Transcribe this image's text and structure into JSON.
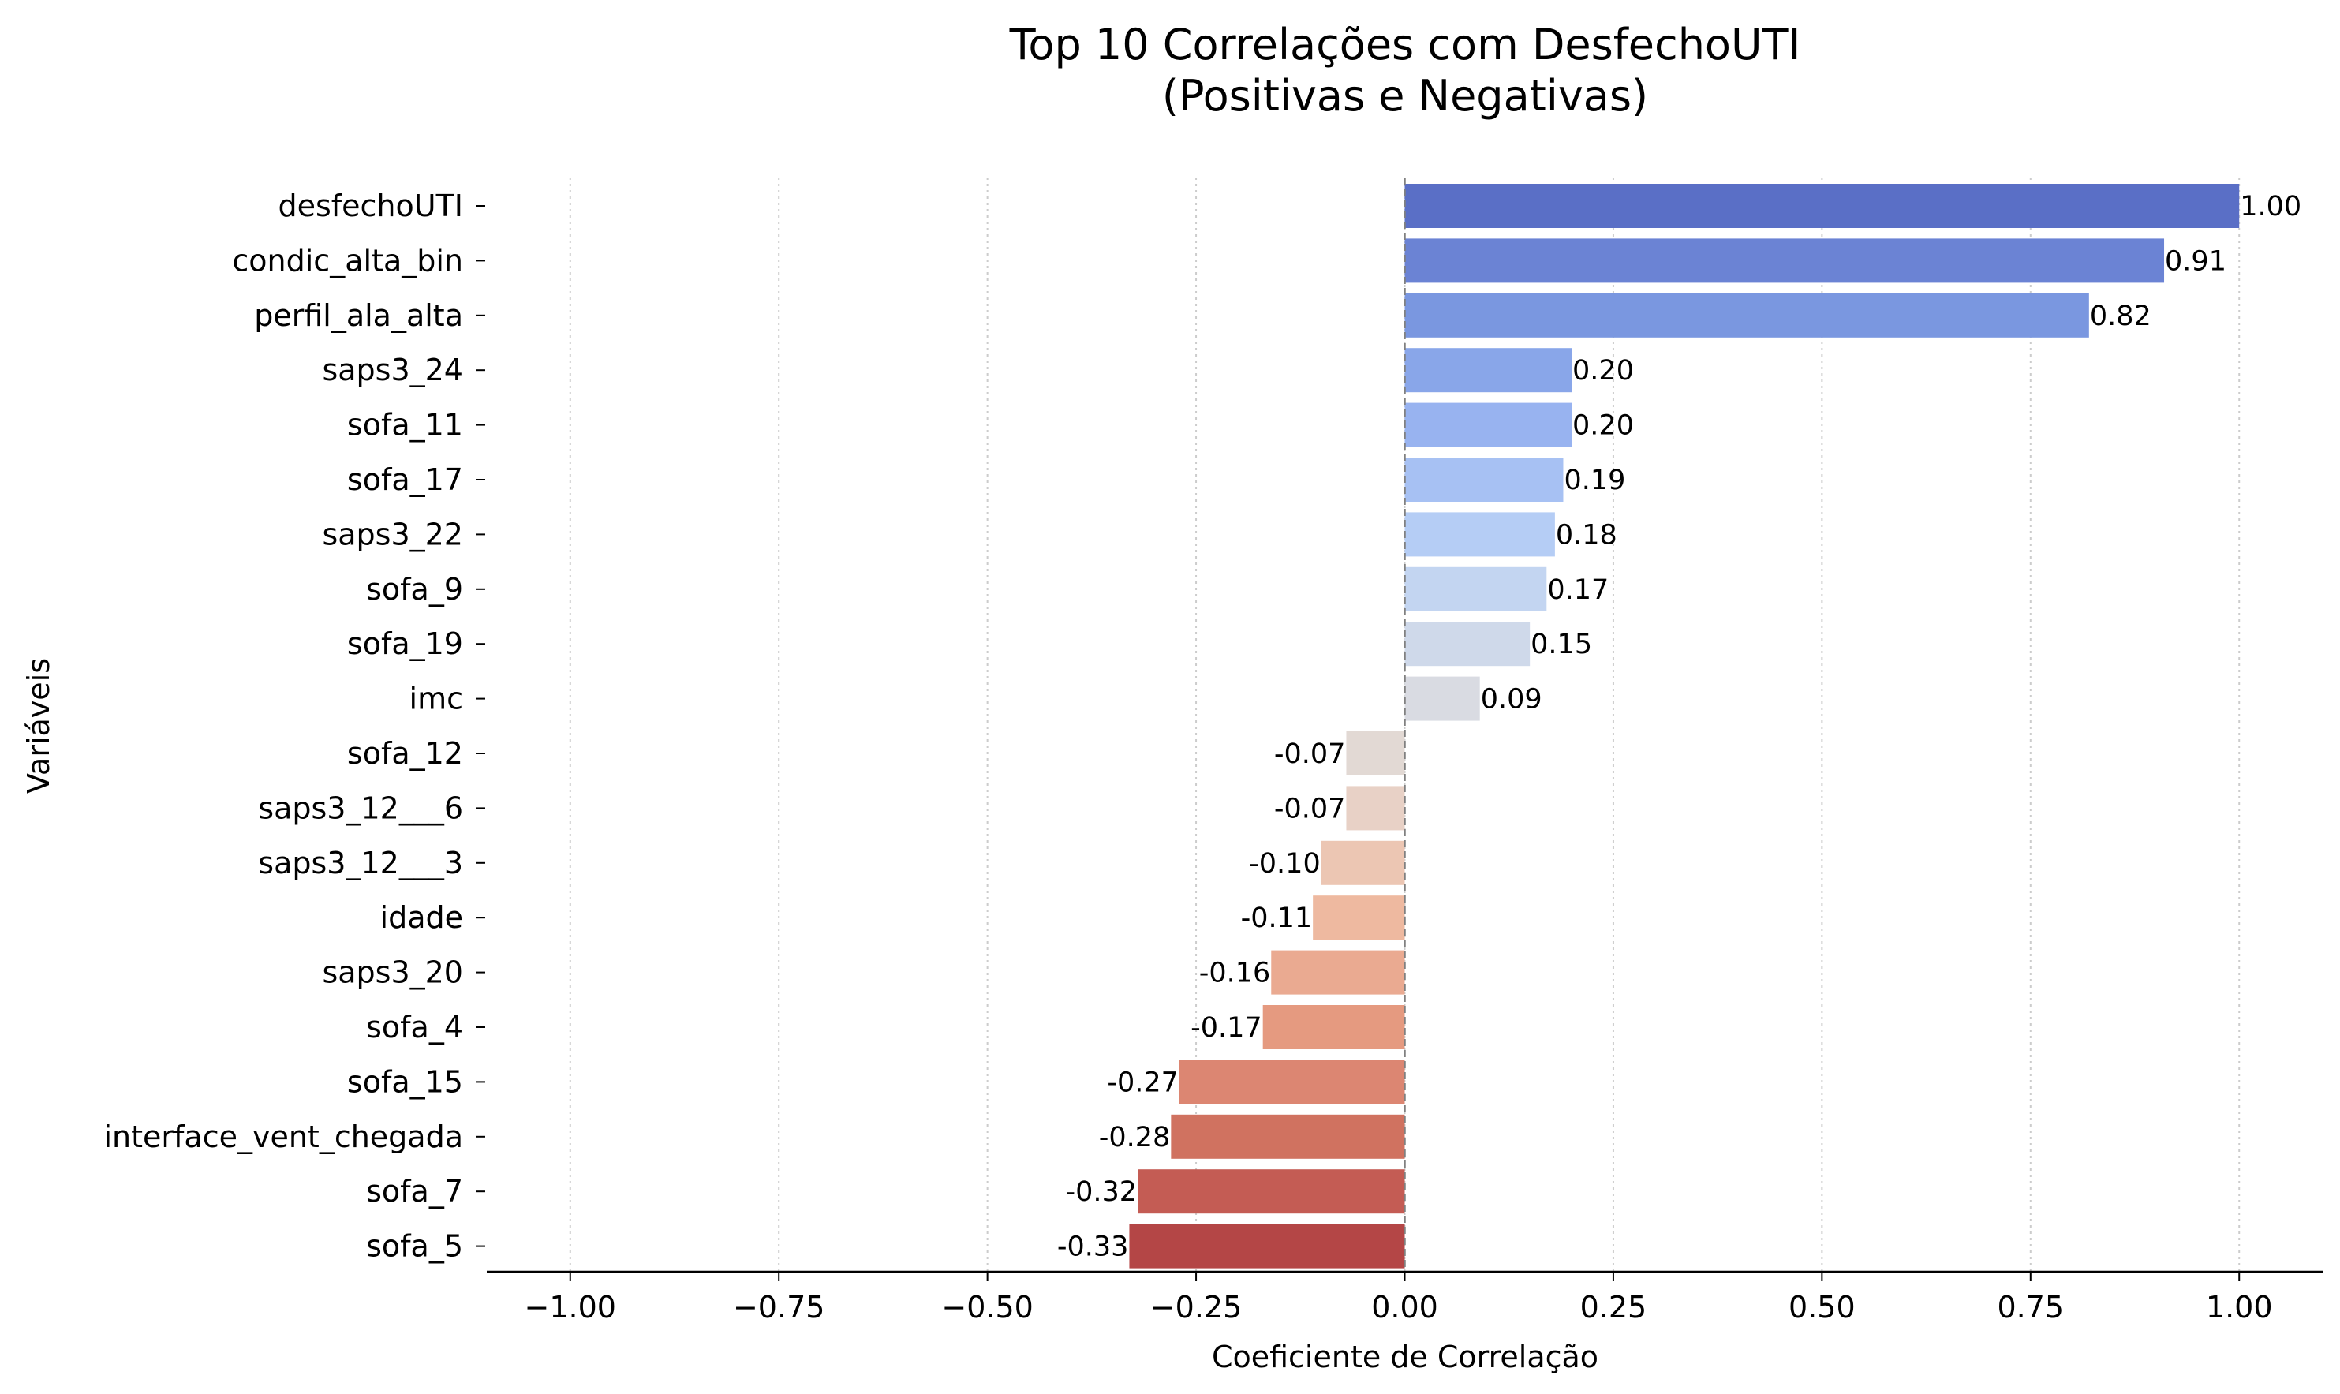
{
  "chart_data": {
    "type": "bar",
    "orientation": "horizontal",
    "title": "Top 10 Correlações com DesfechoUTI\n(Positivas e Negativas)",
    "xlabel": "Coeficiente de Correlação",
    "ylabel": "Variáveis",
    "xlim": [
      -1.1,
      1.1
    ],
    "xticks": [
      -1.0,
      -0.75,
      -0.5,
      -0.25,
      0.0,
      0.25,
      0.5,
      0.75,
      1.0
    ],
    "xtick_labels": [
      "−1.00",
      "−0.75",
      "−0.50",
      "−0.25",
      "0.00",
      "0.25",
      "0.50",
      "0.75",
      "1.00"
    ],
    "grid": "x-dotted",
    "legend": "none",
    "categories": [
      "desfechoUTI",
      "condic_alta_bin",
      "perfil_ala_alta",
      "saps3_24",
      "sofa_11",
      "sofa_17",
      "saps3_22",
      "sofa_9",
      "sofa_19",
      "imc",
      "sofa_12",
      "saps3_12___6",
      "saps3_12___3",
      "idade",
      "saps3_20",
      "sofa_4",
      "sofa_15",
      "interface_vent_chegada",
      "sofa_7",
      "sofa_5"
    ],
    "values": [
      1.0,
      0.91,
      0.82,
      0.2,
      0.2,
      0.19,
      0.18,
      0.17,
      0.15,
      0.09,
      -0.07,
      -0.07,
      -0.1,
      -0.11,
      -0.16,
      -0.17,
      -0.27,
      -0.28,
      -0.32,
      -0.33
    ],
    "value_labels": [
      "1.00",
      "0.91",
      "0.82",
      "0.20",
      "0.20",
      "0.19",
      "0.18",
      "0.17",
      "0.15",
      "0.09",
      "-0.07",
      "-0.07",
      "-0.10",
      "-0.11",
      "-0.16",
      "-0.17",
      "-0.27",
      "-0.28",
      "-0.32",
      "-0.33"
    ],
    "colors": [
      "#5a6fc6",
      "#6b83d4",
      "#7a97e0",
      "#89a6e9",
      "#98b3f0",
      "#a7c1f3",
      "#b5cdf5",
      "#c3d5f1",
      "#cfd9ea",
      "#d9dbe2",
      "#e2d9d4",
      "#e8d1c6",
      "#ecc6b3",
      "#eeb9a0",
      "#eaaa91",
      "#e59a80",
      "#dc8672",
      "#d07260",
      "#c45c54",
      "#b44646"
    ]
  }
}
